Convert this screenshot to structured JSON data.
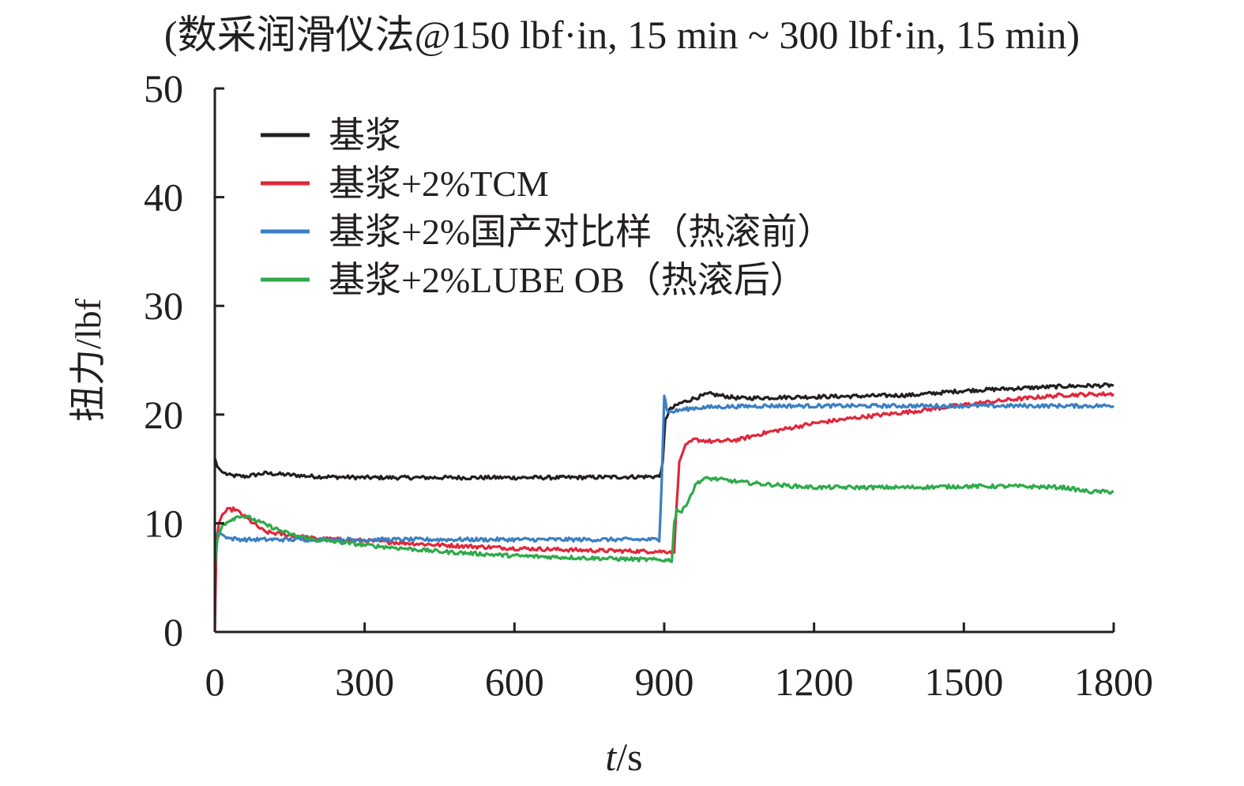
{
  "chart_data": {
    "type": "line",
    "title": "(数采润滑仪法@150 lbf·in, 15 min ~ 300 lbf·in, 15 min)",
    "xlabel": {
      "italic": "t",
      "rest": "/s"
    },
    "ylabel": "扭力/lbf",
    "xlim": [
      0,
      1800
    ],
    "ylim": [
      0,
      50
    ],
    "xticks": [
      0,
      300,
      600,
      900,
      1200,
      1500,
      1800
    ],
    "yticks": [
      0,
      10,
      20,
      30,
      40,
      50
    ],
    "grid": false,
    "legend_position": "top-left",
    "series": [
      {
        "name": "基浆",
        "color": "#231f20",
        "x": [
          0,
          5,
          15,
          30,
          60,
          100,
          200,
          300,
          500,
          700,
          890,
          897,
          902,
          910,
          930,
          960,
          990,
          1050,
          1150,
          1300,
          1400,
          1500,
          1600,
          1700,
          1800
        ],
        "y": [
          16,
          15.2,
          14.7,
          14.4,
          14.3,
          14.6,
          14.3,
          14.2,
          14.2,
          14.2,
          14.3,
          15.5,
          19.5,
          20.4,
          21.0,
          21.5,
          21.9,
          21.5,
          21.6,
          21.7,
          21.8,
          22.2,
          22.4,
          22.6,
          22.7
        ]
      },
      {
        "name": "基浆+2%TCM",
        "color": "#e0283a",
        "x": [
          0,
          3,
          8,
          15,
          25,
          40,
          60,
          100,
          200,
          300,
          450,
          600,
          750,
          900,
          920,
          925,
          930,
          940,
          960,
          1000,
          1050,
          1100,
          1200,
          1300,
          1400,
          1500,
          1600,
          1700,
          1800
        ],
        "y": [
          0,
          8,
          10,
          10.8,
          11.2,
          11.3,
          10.6,
          9.2,
          8.6,
          8.4,
          8.0,
          7.7,
          7.5,
          7.4,
          7.4,
          12,
          15.5,
          17.0,
          17.7,
          17.5,
          17.7,
          18.3,
          19.2,
          19.8,
          20.3,
          20.9,
          21.4,
          21.8,
          21.9
        ]
      },
      {
        "name": "基浆+2%国产对比样（热滚前）",
        "color": "#3b7fc4",
        "x": [
          0,
          10,
          20,
          30,
          60,
          100,
          200,
          300,
          500,
          700,
          890,
          895,
          900,
          905,
          910,
          930,
          960,
          1000,
          1100,
          1200,
          1300,
          1400,
          1500,
          1600,
          1700,
          1800
        ],
        "y": [
          9,
          9.1,
          8.8,
          8.6,
          8.5,
          8.5,
          8.5,
          8.5,
          8.5,
          8.5,
          8.5,
          14,
          21.8,
          20.5,
          20.2,
          20.4,
          20.6,
          20.7,
          20.8,
          20.8,
          20.8,
          20.8,
          20.8,
          20.8,
          20.8,
          20.8
        ]
      },
      {
        "name": "基浆+2%LUBE OB（热滚后）",
        "color": "#2eaa4a",
        "x": [
          0,
          5,
          15,
          30,
          50,
          70,
          100,
          150,
          200,
          300,
          450,
          600,
          750,
          915,
          920,
          925,
          935,
          950,
          965,
          980,
          1000,
          1050,
          1100,
          1200,
          1300,
          1400,
          1500,
          1600,
          1700,
          1750,
          1800
        ],
        "y": [
          6,
          8.5,
          9.8,
          10.3,
          10.7,
          10.5,
          9.9,
          9.0,
          8.5,
          8.0,
          7.4,
          7.0,
          6.8,
          6.6,
          10,
          11.3,
          11.0,
          12.3,
          13.7,
          14.1,
          14.1,
          13.8,
          13.6,
          13.3,
          13.3,
          13.3,
          13.4,
          13.4,
          13.3,
          12.9,
          12.9
        ]
      }
    ]
  }
}
